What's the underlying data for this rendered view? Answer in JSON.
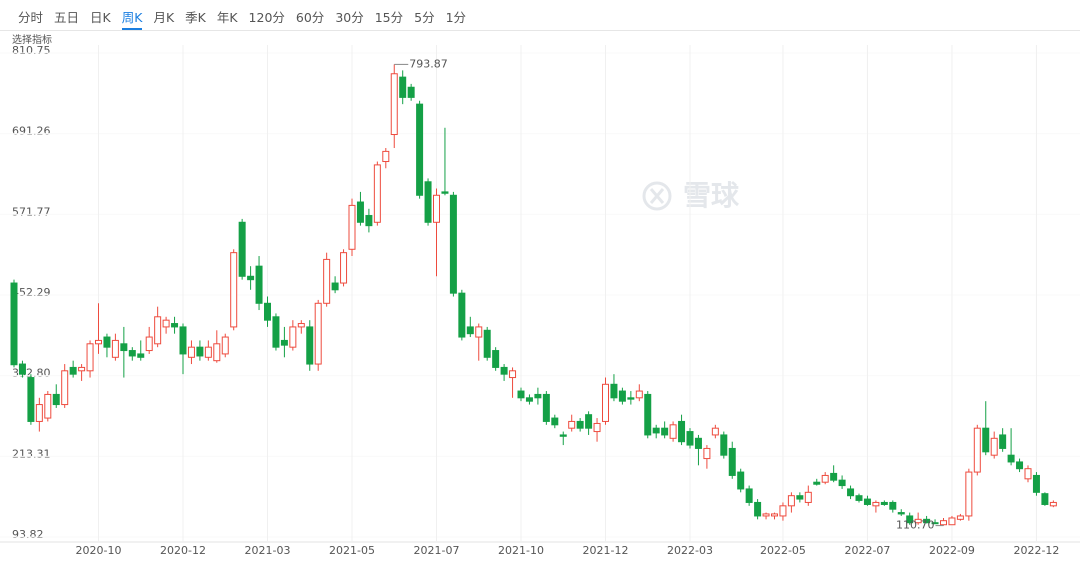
{
  "tabs": [
    {
      "label": "分时"
    },
    {
      "label": "五日"
    },
    {
      "label": "日K"
    },
    {
      "label": "周K",
      "active": true
    },
    {
      "label": "月K"
    },
    {
      "label": "季K"
    },
    {
      "label": "年K"
    },
    {
      "label": "120分"
    },
    {
      "label": "60分"
    },
    {
      "label": "30分"
    },
    {
      "label": "15分"
    },
    {
      "label": "5分"
    },
    {
      "label": "1分"
    }
  ],
  "indicator": "选择指标",
  "watermark": "雪球",
  "chart_data": {
    "type": "candlestick",
    "up_color": "#ee4b3e",
    "down_color": "#14a046",
    "ylim": [
      93.82,
      810.75
    ],
    "yticks": [
      810.75,
      691.26,
      571.77,
      452.29,
      {
        "value": 332.8,
        "label": "332.80"
      },
      213.31,
      93.82
    ],
    "grid": true,
    "max_label": "793.87",
    "min_label": "110.70",
    "categories": [
      null,
      null,
      null,
      null,
      null,
      null,
      null,
      null,
      null,
      null,
      "2020-10",
      null,
      null,
      null,
      null,
      null,
      null,
      null,
      null,
      null,
      "2020-12",
      null,
      null,
      null,
      null,
      null,
      null,
      null,
      null,
      null,
      "2021-03",
      null,
      null,
      null,
      null,
      null,
      null,
      null,
      null,
      null,
      "2021-05",
      null,
      null,
      null,
      null,
      null,
      null,
      null,
      null,
      null,
      "2021-07",
      null,
      null,
      null,
      null,
      null,
      null,
      null,
      null,
      null,
      "2021-10",
      null,
      null,
      null,
      null,
      null,
      null,
      null,
      null,
      null,
      "2021-12",
      null,
      null,
      null,
      null,
      null,
      null,
      null,
      null,
      null,
      "2022-03",
      null,
      null,
      null,
      null,
      null,
      null,
      null,
      null,
      null,
      null,
      "2022-05",
      null,
      null,
      null,
      null,
      null,
      null,
      null,
      null,
      null,
      "2022-07",
      null,
      null,
      null,
      null,
      null,
      null,
      null,
      null,
      null,
      "2022-09",
      null,
      null,
      null,
      null,
      null,
      null,
      null,
      null,
      null,
      "2022-12",
      null,
      null
    ],
    "open": [
      470,
      350,
      330,
      265,
      270,
      305,
      290,
      345,
      340,
      340,
      380,
      390,
      360,
      380,
      370,
      365,
      370,
      380,
      405,
      410,
      405,
      360,
      375,
      360,
      355,
      365,
      405,
      560,
      480,
      495,
      440,
      420,
      385,
      375,
      405,
      405,
      350,
      440,
      470,
      470,
      520,
      590,
      570,
      560,
      650,
      690,
      775,
      760,
      735,
      620,
      560,
      605,
      600,
      455,
      405,
      390,
      400,
      370,
      345,
      330,
      310,
      300,
      305,
      305,
      270,
      245,
      255,
      265,
      275,
      250,
      265,
      320,
      310,
      300,
      300,
      305,
      255,
      255,
      240,
      265,
      250,
      240,
      210,
      245,
      245,
      225,
      190,
      165,
      145,
      125,
      125,
      125,
      140,
      155,
      145,
      175,
      175,
      188,
      178,
      165,
      155,
      150,
      140,
      145,
      145,
      130,
      125,
      115,
      120,
      115,
      112,
      112,
      120,
      125,
      190,
      255,
      215,
      245,
      215,
      205,
      180,
      185,
      158,
      140
    ],
    "high": [
      475,
      355,
      335,
      300,
      310,
      320,
      350,
      355,
      350,
      385,
      440,
      395,
      395,
      405,
      375,
      385,
      405,
      435,
      420,
      420,
      410,
      385,
      385,
      385,
      400,
      395,
      520,
      565,
      495,
      510,
      450,
      425,
      405,
      415,
      415,
      415,
      445,
      515,
      480,
      520,
      595,
      605,
      580,
      650,
      670,
      793.87,
      785,
      765,
      740,
      625,
      610,
      700,
      605,
      460,
      420,
      410,
      405,
      375,
      350,
      345,
      315,
      305,
      315,
      310,
      275,
      250,
      275,
      270,
      280,
      270,
      330,
      335,
      315,
      310,
      320,
      310,
      260,
      265,
      265,
      275,
      255,
      245,
      230,
      260,
      250,
      235,
      195,
      170,
      150,
      130,
      130,
      145,
      160,
      160,
      170,
      180,
      190,
      200,
      185,
      170,
      158,
      155,
      148,
      148,
      148,
      135,
      130,
      130,
      125,
      120,
      122,
      125,
      128,
      195,
      260,
      295,
      250,
      255,
      255,
      210,
      200,
      190,
      160,
      148
    ],
    "low": [
      345,
      330,
      260,
      250,
      265,
      285,
      285,
      330,
      325,
      330,
      365,
      360,
      355,
      330,
      355,
      355,
      365,
      375,
      395,
      395,
      335,
      350,
      355,
      355,
      352,
      360,
      400,
      475,
      460,
      430,
      405,
      370,
      360,
      370,
      395,
      340,
      340,
      435,
      455,
      465,
      510,
      555,
      545,
      555,
      640,
      670,
      735,
      740,
      595,
      555,
      480,
      600,
      450,
      385,
      390,
      355,
      355,
      340,
      325,
      300,
      295,
      290,
      290,
      260,
      255,
      230,
      250,
      250,
      245,
      235,
      260,
      295,
      290,
      290,
      295,
      240,
      240,
      240,
      235,
      230,
      225,
      200,
      195,
      240,
      210,
      180,
      160,
      140,
      120,
      120,
      120,
      118,
      130,
      145,
      140,
      170,
      172,
      175,
      165,
      150,
      145,
      140,
      130,
      140,
      130,
      125,
      112,
      112,
      114,
      113,
      110.7,
      112,
      118,
      118,
      185,
      215,
      210,
      220,
      200,
      190,
      175,
      155,
      140,
      138
    ],
    "close": [
      349,
      335,
      265,
      290,
      305,
      290,
      340,
      335,
      345,
      380,
      385,
      375,
      385,
      370,
      362,
      360,
      390,
      420,
      415,
      405,
      365,
      375,
      362,
      375,
      380,
      390,
      515,
      480,
      475,
      440,
      415,
      375,
      378,
      405,
      410,
      350,
      440,
      505,
      460,
      515,
      585,
      560,
      555,
      645,
      665,
      780,
      745,
      745,
      600,
      560,
      600,
      603,
      455,
      390,
      395,
      405,
      360,
      345,
      335,
      340,
      300,
      295,
      300,
      265,
      260,
      243,
      265,
      255,
      255,
      262,
      320,
      300,
      295,
      298,
      310,
      245,
      248,
      245,
      260,
      235,
      230,
      225,
      225,
      255,
      215,
      185,
      165,
      145,
      125,
      128,
      128,
      140,
      155,
      150,
      160,
      172,
      185,
      178,
      170,
      155,
      148,
      142,
      145,
      142,
      135,
      128,
      115,
      120,
      115,
      114,
      118,
      122,
      125,
      190,
      255,
      220,
      240,
      225,
      205,
      195,
      195,
      160,
      142,
      145
    ]
  }
}
